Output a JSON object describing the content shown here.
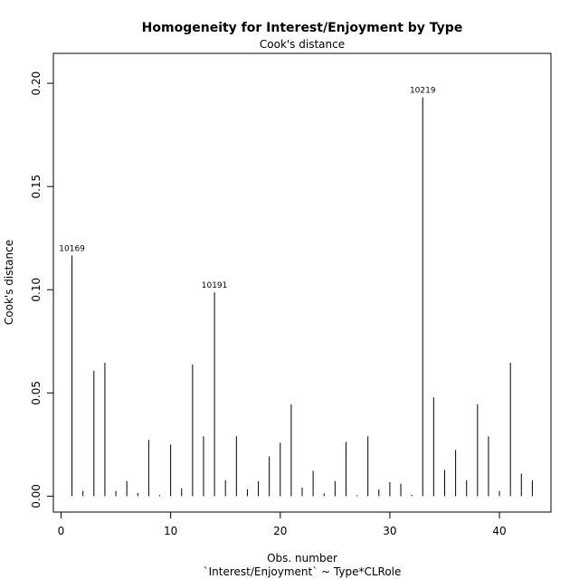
{
  "chart_data": {
    "type": "bar",
    "title": "Homogeneity for Interest/Enjoyment by Type",
    "subtitle": "Cook's distance",
    "xlabel": "Obs. number",
    "xlabel2": "`Interest/Enjoyment` ~ Type*CLRole",
    "ylabel": "Cook's distance",
    "xlim": [
      -0.7,
      44.7
    ],
    "ylim": [
      -0.0077,
      0.2145
    ],
    "xticks": [
      0,
      10,
      20,
      30,
      40
    ],
    "yticks": [
      0.0,
      0.05,
      0.1,
      0.15,
      0.2
    ],
    "ytick_labels": [
      "0.00",
      "0.05",
      "0.10",
      "0.15",
      "0.20"
    ],
    "x": [
      1,
      2,
      3,
      4,
      5,
      6,
      7,
      8,
      9,
      10,
      11,
      12,
      13,
      14,
      15,
      16,
      17,
      18,
      19,
      20,
      21,
      22,
      23,
      24,
      25,
      26,
      27,
      28,
      29,
      30,
      31,
      32,
      33,
      34,
      35,
      36,
      37,
      38,
      39,
      40,
      41,
      42,
      43
    ],
    "values": [
      0.1166,
      0.0025,
      0.0607,
      0.0646,
      0.0025,
      0.0073,
      0.0015,
      0.0272,
      0.0005,
      0.025,
      0.0038,
      0.0638,
      0.029,
      0.0987,
      0.0077,
      0.029,
      0.0033,
      0.0073,
      0.0193,
      0.0259,
      0.0445,
      0.0042,
      0.0123,
      0.0014,
      0.0073,
      0.0263,
      0.0005,
      0.029,
      0.0033,
      0.0068,
      0.006,
      0.0007,
      0.1932,
      0.0479,
      0.0127,
      0.0224,
      0.0077,
      0.0445,
      0.029,
      0.0025,
      0.0646,
      0.0109,
      0.0077
    ],
    "annotations": [
      {
        "x": 1,
        "label": "10169"
      },
      {
        "x": 14,
        "label": "10191"
      },
      {
        "x": 33,
        "label": "10219"
      }
    ],
    "grid": false,
    "legend": "none"
  }
}
